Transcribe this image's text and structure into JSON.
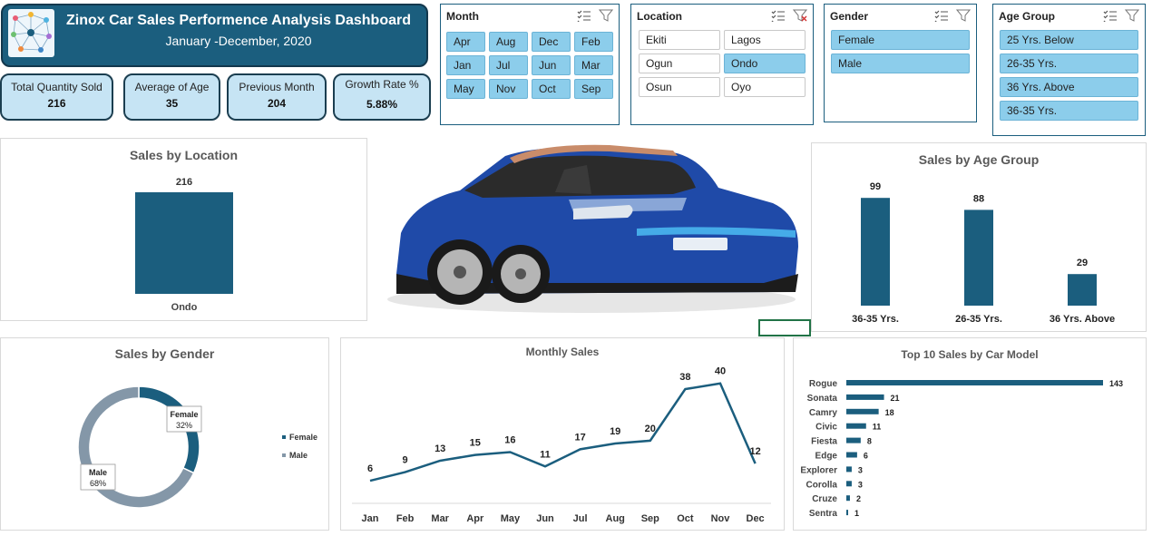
{
  "header": {
    "title": "Zinox Car Sales Performence Analysis Dashboard",
    "subtitle": "January -December,  2020"
  },
  "kpis": [
    {
      "label": "Total Quantity Sold",
      "value": "216"
    },
    {
      "label": "Average of Age",
      "value": "35"
    },
    {
      "label": "Previous Month",
      "value": "204"
    },
    {
      "label": "Growth Rate %",
      "value": "5.88%"
    }
  ],
  "slicers": {
    "month": {
      "title": "Month",
      "items": [
        {
          "label": "Apr",
          "selected": true
        },
        {
          "label": "Aug",
          "selected": true
        },
        {
          "label": "Dec",
          "selected": true
        },
        {
          "label": "Feb",
          "selected": true
        },
        {
          "label": "Jan",
          "selected": true
        },
        {
          "label": "Jul",
          "selected": true
        },
        {
          "label": "Jun",
          "selected": true
        },
        {
          "label": "Mar",
          "selected": true
        },
        {
          "label": "May",
          "selected": true
        },
        {
          "label": "Nov",
          "selected": true
        },
        {
          "label": "Oct",
          "selected": true
        },
        {
          "label": "Sep",
          "selected": true
        }
      ]
    },
    "location": {
      "title": "Location",
      "items": [
        {
          "label": "Ekiti",
          "selected": false
        },
        {
          "label": "Lagos",
          "selected": false
        },
        {
          "label": "Ogun",
          "selected": false
        },
        {
          "label": "Ondo",
          "selected": true
        },
        {
          "label": "Osun",
          "selected": false
        },
        {
          "label": "Oyo",
          "selected": false
        }
      ]
    },
    "gender": {
      "title": "Gender",
      "items": [
        {
          "label": "Female",
          "selected": true
        },
        {
          "label": "Male",
          "selected": true
        }
      ]
    },
    "age_group": {
      "title": "Age Group",
      "items": [
        {
          "label": "25 Yrs. Below",
          "selected": true
        },
        {
          "label": "26-35 Yrs.",
          "selected": true
        },
        {
          "label": "36 Yrs. Above",
          "selected": true
        },
        {
          "label": "36-35 Yrs.",
          "selected": true
        }
      ]
    }
  },
  "colors": {
    "primary": "#1b5e7e",
    "kpi_bg": "#c6e4f4",
    "slicer_selected": "#8ccdeb",
    "male": "#8497a8"
  },
  "icons": {
    "multi_select": "multi-select-icon",
    "clear_filter": "clear-filter-icon"
  },
  "chart_data": [
    {
      "id": "location",
      "type": "bar",
      "title": "Sales by Location",
      "categories": [
        "Ondo"
      ],
      "values": [
        216
      ]
    },
    {
      "id": "age_group",
      "type": "bar",
      "title": "Sales by Age Group",
      "categories": [
        "36-35 Yrs.",
        "26-35 Yrs.",
        "36 Yrs. Above"
      ],
      "values": [
        99,
        88,
        29
      ],
      "ylim": [
        0,
        110
      ]
    },
    {
      "id": "gender",
      "type": "pie",
      "title": "Sales by Gender",
      "categories": [
        "Female",
        "Male"
      ],
      "values": [
        32,
        68
      ],
      "labels": [
        "32%",
        "68%"
      ],
      "legend": "right"
    },
    {
      "id": "monthly",
      "type": "line",
      "title": "Monthly Sales",
      "categories": [
        "Jan",
        "Feb",
        "Mar",
        "Apr",
        "May",
        "Jun",
        "Jul",
        "Aug",
        "Sep",
        "Oct",
        "Nov",
        "Dec"
      ],
      "values": [
        6,
        9,
        13,
        15,
        16,
        11,
        17,
        19,
        20,
        38,
        40,
        12
      ],
      "ylim": [
        0,
        45
      ]
    },
    {
      "id": "car_model",
      "type": "bar",
      "orientation": "horizontal",
      "title": "Top 10 Sales by Car Model",
      "categories": [
        "Rogue",
        "Sonata",
        "Camry",
        "Civic",
        "Fiesta",
        "Edge",
        "Explorer",
        "Corolla",
        "Cruze",
        "Sentra"
      ],
      "values": [
        143,
        21,
        18,
        11,
        8,
        6,
        3,
        3,
        2,
        1
      ],
      "xlim": [
        0,
        143
      ]
    }
  ]
}
